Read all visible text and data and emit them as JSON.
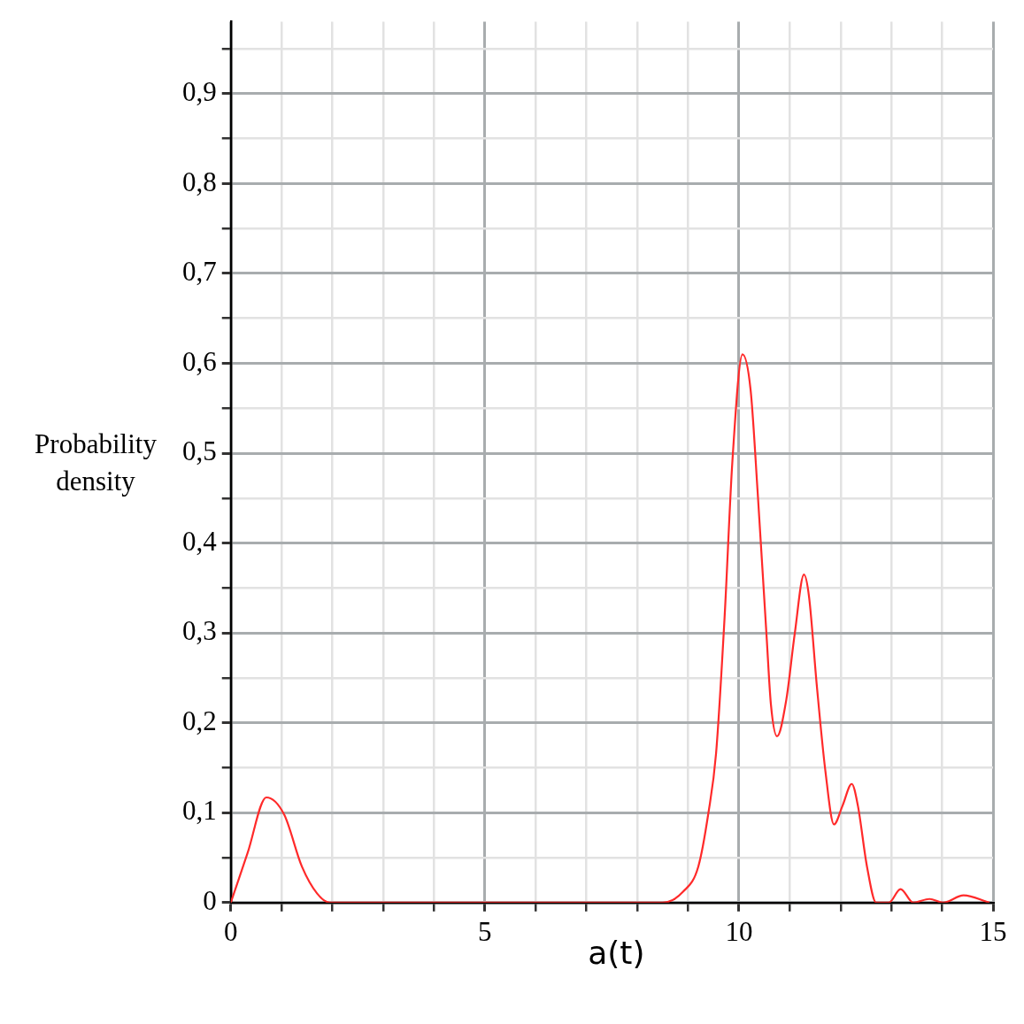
{
  "chart_data": {
    "type": "line",
    "xlabel": "a(t)",
    "ylabel": "Probability density",
    "x": [
      0,
      0.33,
      0.7,
      1.05,
      1.4,
      1.7,
      1.95,
      8.5,
      8.9,
      9.2,
      9.4,
      9.55,
      9.72,
      9.87,
      10.07,
      10.23,
      10.37,
      10.54,
      10.63,
      10.75,
      10.93,
      11.1,
      11.28,
      11.38,
      11.53,
      11.7,
      11.87,
      12.04,
      12.22,
      12.34,
      12.52,
      12.7,
      12.95,
      13.18,
      13.43,
      13.75,
      14.02,
      14.42,
      14.93
    ],
    "series": [
      {
        "color": "#ff2a2a",
        "values": [
          0,
          0.055,
          0.117,
          0.098,
          0.04,
          0.01,
          0,
          0,
          0.012,
          0.04,
          0.1,
          0.166,
          0.32,
          0.49,
          0.61,
          0.57,
          0.455,
          0.3,
          0.22,
          0.185,
          0.225,
          0.3,
          0.365,
          0.34,
          0.243,
          0.147,
          0.087,
          0.108,
          0.132,
          0.108,
          0.04,
          0,
          0,
          0.015,
          0,
          0.004,
          0,
          0.008,
          0
        ]
      }
    ],
    "xlim": [
      0,
      15
    ],
    "ylim": [
      0,
      0.98
    ],
    "xticks": [
      0,
      {
        "value": 1,
        "label": null
      },
      {
        "value": 2,
        "label": null
      },
      {
        "value": 3,
        "label": null
      },
      {
        "value": 4,
        "label": null
      },
      5,
      {
        "value": 6,
        "label": null
      },
      {
        "value": 7,
        "label": null
      },
      {
        "value": 8,
        "label": null
      },
      {
        "value": 9,
        "label": null
      },
      10,
      {
        "value": 11,
        "label": null
      },
      {
        "value": 12,
        "label": null
      },
      {
        "value": 13,
        "label": null
      },
      {
        "value": 14,
        "label": null
      },
      15
    ],
    "yticks": [
      0,
      {
        "value": 0.05,
        "label": null
      },
      {
        "value": 0.1,
        "label": "0,1"
      },
      {
        "value": 0.15,
        "label": null
      },
      {
        "value": 0.2,
        "label": "0,2"
      },
      {
        "value": 0.25,
        "label": null
      },
      {
        "value": 0.3,
        "label": "0,3"
      },
      {
        "value": 0.35,
        "label": null
      },
      {
        "value": 0.4,
        "label": "0,4"
      },
      {
        "value": 0.45,
        "label": null
      },
      {
        "value": 0.5,
        "label": "0,5"
      },
      {
        "value": 0.55,
        "label": null
      },
      {
        "value": 0.6,
        "label": "0,6"
      },
      {
        "value": 0.65,
        "label": null
      },
      {
        "value": 0.7,
        "label": "0,7"
      },
      {
        "value": 0.75,
        "label": null
      },
      {
        "value": 0.8,
        "label": "0,8"
      },
      {
        "value": 0.85,
        "label": null
      },
      {
        "value": 0.9,
        "label": "0,9"
      },
      {
        "value": 0.95,
        "label": null
      }
    ],
    "grid": true,
    "legend": false,
    "marker": "none",
    "line_style": "solid"
  }
}
